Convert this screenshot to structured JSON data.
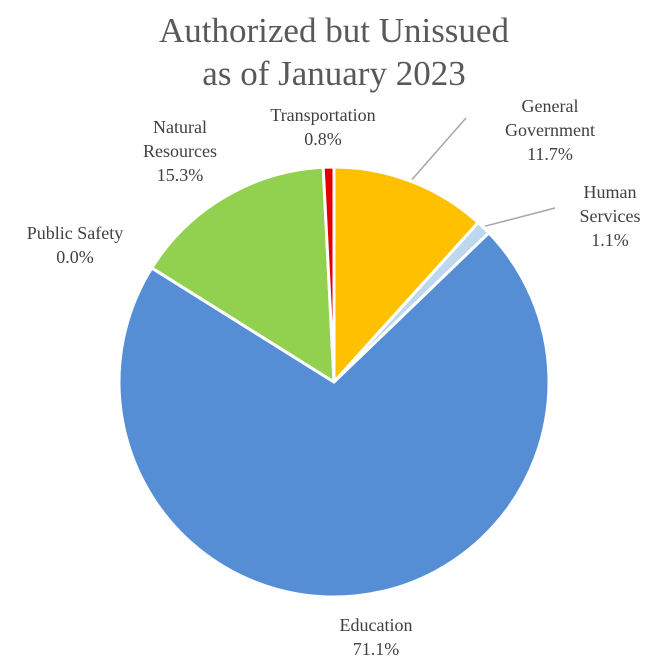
{
  "chart_data": {
    "type": "pie",
    "title_lines": [
      "Authorized but Unissued",
      "as of January 2023"
    ],
    "slices": [
      {
        "label_lines": [
          "General",
          "Government"
        ],
        "value_label": "11.7%",
        "value": 11.7,
        "color": "#FFC000"
      },
      {
        "label_lines": [
          "Human",
          "Services"
        ],
        "value_label": "1.1%",
        "value": 1.1,
        "color": "#BDD7EE"
      },
      {
        "label_lines": [
          "Education"
        ],
        "value_label": "71.1%",
        "value": 71.1,
        "color": "#558ED5"
      },
      {
        "label_lines": [
          "Public Safety"
        ],
        "value_label": "0.0%",
        "value": 0.0,
        "color": "#558ED5"
      },
      {
        "label_lines": [
          "Natural",
          "Resources"
        ],
        "value_label": "15.3%",
        "value": 15.3,
        "color": "#92D050"
      },
      {
        "label_lines": [
          "Transportation"
        ],
        "value_label": "0.8%",
        "value": 0.8,
        "color": "#E00000"
      }
    ],
    "start_position": "12 o'clock",
    "direction": "clockwise",
    "legend": "none",
    "data_labels": "category name and percentage, outside end"
  }
}
